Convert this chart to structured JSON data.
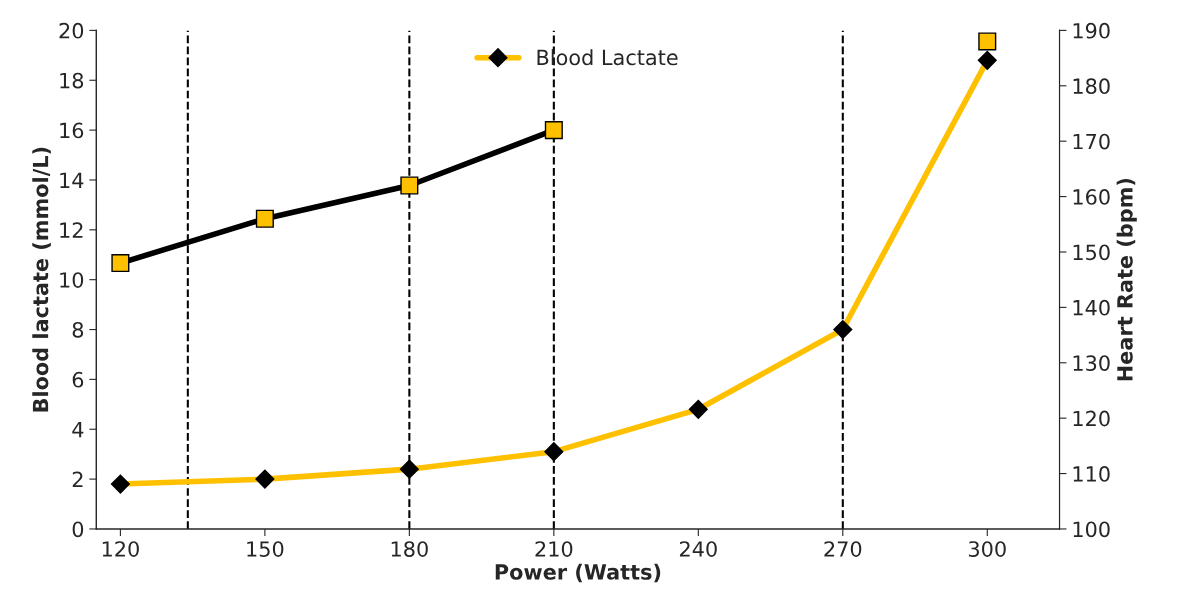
{
  "chart_data": {
    "type": "line",
    "xlabel": "Power (Watts)",
    "ylabel": "Blood lactate (mmol/L)",
    "y2label": "Heart Rate (bpm)",
    "x": [
      120,
      150,
      180,
      210,
      240,
      270,
      300
    ],
    "series": [
      {
        "name": "Blood Lactate",
        "color": "#ffc000",
        "marker": "diamond",
        "values": [
          1.8,
          2.0,
          2.4,
          3.1,
          4.8,
          8.0,
          18.8
        ]
      },
      {
        "color": "#000000",
        "marker": "square",
        "axis": "y2",
        "values": [
          148,
          156,
          162,
          172,
          null,
          null,
          188
        ]
      }
    ],
    "xlim": [
      115,
      315
    ],
    "xticks": [
      120,
      150,
      180,
      210,
      240,
      270,
      300
    ],
    "ylim": [
      0,
      20
    ],
    "yticks": [
      0,
      2,
      4,
      6,
      8,
      10,
      12,
      14,
      16,
      18,
      20
    ],
    "y2lim": [
      100,
      190
    ],
    "y2ticks": [
      100,
      110,
      120,
      130,
      140,
      150,
      160,
      170,
      180,
      190
    ],
    "ref_lines": [
      {
        "axis": "x",
        "value": 134,
        "color": "#000000",
        "line_style": "dashed"
      },
      {
        "axis": "x",
        "value": 180,
        "color": "#000000",
        "line_style": "dashed"
      },
      {
        "axis": "x",
        "value": 210,
        "color": "#000000",
        "line_style": "dashed"
      },
      {
        "axis": "x",
        "value": 270,
        "color": "#000000",
        "line_style": "dashed"
      }
    ],
    "legend": "top",
    "grid": false
  }
}
